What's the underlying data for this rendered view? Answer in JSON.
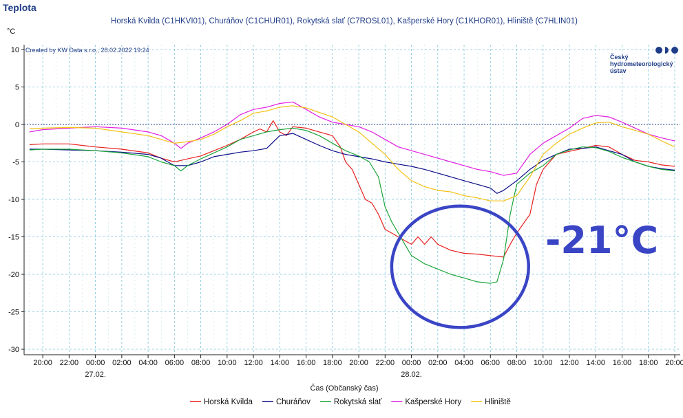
{
  "chart_data": {
    "type": "line",
    "title": "Teplota",
    "subtitle": "Horská Kvilda (C1HKVI01), Churáňov (C1CHUR01), Rokytská slať (C7ROSL01), Kašperské Hory (C1KHOR01), Hliniště (C7HLIN01)",
    "credit": "Created by KW Data s.r.o., 28.02.2022 19:24",
    "logo_lines": [
      "Český",
      "hydrometeorologický",
      "ústav"
    ],
    "ylabel": "°C",
    "xlabel": "Čas (Občanský čas)",
    "ylim": [
      -30,
      10
    ],
    "y_ticks": [
      10,
      5,
      0,
      -5,
      -10,
      -15,
      -20,
      -25,
      -30
    ],
    "x_range": [
      -5,
      44
    ],
    "x_ticks": [
      {
        "x": -4,
        "label": "20:00"
      },
      {
        "x": -2,
        "label": "22:00"
      },
      {
        "x": 0,
        "label": "00:00"
      },
      {
        "x": 2,
        "label": "02:00"
      },
      {
        "x": 4,
        "label": "04:00"
      },
      {
        "x": 6,
        "label": "06:00"
      },
      {
        "x": 8,
        "label": "08:00"
      },
      {
        "x": 10,
        "label": "10:00"
      },
      {
        "x": 12,
        "label": "12:00"
      },
      {
        "x": 14,
        "label": "14:00"
      },
      {
        "x": 16,
        "label": "16:00"
      },
      {
        "x": 18,
        "label": "18:00"
      },
      {
        "x": 20,
        "label": "20:00"
      },
      {
        "x": 22,
        "label": "22:00"
      },
      {
        "x": 24,
        "label": "00:00"
      },
      {
        "x": 26,
        "label": "02:00"
      },
      {
        "x": 28,
        "label": "04:00"
      },
      {
        "x": 30,
        "label": "06:00"
      },
      {
        "x": 32,
        "label": "08:00"
      },
      {
        "x": 34,
        "label": "10:00"
      },
      {
        "x": 36,
        "label": "12:00"
      },
      {
        "x": 38,
        "label": "14:00"
      },
      {
        "x": 40,
        "label": "16:00"
      },
      {
        "x": 42,
        "label": "18:00"
      },
      {
        "x": 44,
        "label": "20:00"
      }
    ],
    "date_labels": [
      {
        "x": 0,
        "label": "27.02."
      },
      {
        "x": 24,
        "label": "28.02."
      }
    ],
    "grid": true,
    "legend_position": "bottom",
    "annotation": {
      "text": "-21°C",
      "color": "#3a45c5",
      "circle_center": [
        27.7,
        -19
      ],
      "circle_radii": [
        5.2,
        8.1
      ]
    },
    "series": [
      {
        "name": "Horská Kvilda",
        "color": "#e8201e",
        "points": [
          [
            -5,
            -2.7
          ],
          [
            -4,
            -2.6
          ],
          [
            -2,
            -2.6
          ],
          [
            0,
            -3
          ],
          [
            2,
            -3.3
          ],
          [
            4,
            -3.8
          ],
          [
            5,
            -4.5
          ],
          [
            6,
            -5
          ],
          [
            7,
            -4.6
          ],
          [
            8,
            -4.2
          ],
          [
            9,
            -3.5
          ],
          [
            10,
            -2.8
          ],
          [
            11,
            -2
          ],
          [
            12,
            -1
          ],
          [
            12.5,
            -0.6
          ],
          [
            13,
            -1
          ],
          [
            13.5,
            0.5
          ],
          [
            14,
            -1
          ],
          [
            14.5,
            -1.5
          ],
          [
            15,
            -0.3
          ],
          [
            16,
            -0.5
          ],
          [
            17,
            -1
          ],
          [
            18,
            -1.5
          ],
          [
            18.6,
            -3
          ],
          [
            19,
            -5
          ],
          [
            19.5,
            -6
          ],
          [
            20,
            -8
          ],
          [
            20.5,
            -10
          ],
          [
            21,
            -10.5
          ],
          [
            21.5,
            -12
          ],
          [
            22,
            -14
          ],
          [
            22.5,
            -14.5
          ],
          [
            23,
            -15
          ],
          [
            23.5,
            -15.5
          ],
          [
            24,
            -16
          ],
          [
            24.5,
            -15
          ],
          [
            25,
            -16
          ],
          [
            25.5,
            -15
          ],
          [
            26,
            -16
          ],
          [
            27,
            -16.8
          ],
          [
            28,
            -17.2
          ],
          [
            29,
            -17.3
          ],
          [
            30,
            -17.5
          ],
          [
            31,
            -17.7
          ],
          [
            31.5,
            -16
          ],
          [
            32,
            -14.5
          ],
          [
            33,
            -12
          ],
          [
            33.5,
            -8
          ],
          [
            34,
            -6
          ],
          [
            35,
            -4
          ],
          [
            36,
            -3.6
          ],
          [
            37,
            -3.2
          ],
          [
            38,
            -2.8
          ],
          [
            39,
            -3
          ],
          [
            40,
            -4
          ],
          [
            41,
            -4.8
          ],
          [
            42,
            -5
          ],
          [
            43,
            -5.4
          ],
          [
            44,
            -5.6
          ]
        ]
      },
      {
        "name": "Churáňov",
        "color": "#0b0b8a",
        "points": [
          [
            -5,
            -3.3
          ],
          [
            -4,
            -3.3
          ],
          [
            -2,
            -3.4
          ],
          [
            0,
            -3.5
          ],
          [
            2,
            -3.7
          ],
          [
            4,
            -4
          ],
          [
            5,
            -4.5
          ],
          [
            6,
            -5.5
          ],
          [
            7,
            -5.5
          ],
          [
            8,
            -5
          ],
          [
            9,
            -4.3
          ],
          [
            10,
            -4
          ],
          [
            11,
            -3.7
          ],
          [
            12,
            -3.5
          ],
          [
            13,
            -3.2
          ],
          [
            14,
            -1.5
          ],
          [
            15,
            -1.2
          ],
          [
            16,
            -2
          ],
          [
            17,
            -2.8
          ],
          [
            18,
            -3.5
          ],
          [
            19,
            -4
          ],
          [
            20,
            -4.3
          ],
          [
            21,
            -4.6
          ],
          [
            22,
            -5
          ],
          [
            23,
            -5.3
          ],
          [
            24,
            -5.6
          ],
          [
            25,
            -6
          ],
          [
            26,
            -6.5
          ],
          [
            27,
            -7
          ],
          [
            28,
            -7.5
          ],
          [
            29,
            -8
          ],
          [
            30,
            -8.5
          ],
          [
            30.5,
            -9.2
          ],
          [
            31,
            -8.8
          ],
          [
            32,
            -7.5
          ],
          [
            33,
            -6
          ],
          [
            34,
            -4.8
          ],
          [
            35,
            -4
          ],
          [
            36,
            -3.3
          ],
          [
            37,
            -3.2
          ],
          [
            38,
            -3
          ],
          [
            39,
            -3.5
          ],
          [
            40,
            -4
          ],
          [
            41,
            -5
          ],
          [
            42,
            -5.6
          ],
          [
            43,
            -5.9
          ],
          [
            44,
            -6.1
          ]
        ]
      },
      {
        "name": "Rokytská slať",
        "color": "#1aa338",
        "points": [
          [
            -5,
            -3.4
          ],
          [
            -4,
            -3.3
          ],
          [
            -2,
            -3.3
          ],
          [
            0,
            -3.5
          ],
          [
            2,
            -3.8
          ],
          [
            4,
            -4.3
          ],
          [
            5,
            -5
          ],
          [
            6,
            -5.5
          ],
          [
            6.5,
            -6.2
          ],
          [
            7,
            -5.5
          ],
          [
            8,
            -4.6
          ],
          [
            9,
            -3.8
          ],
          [
            10,
            -3
          ],
          [
            11,
            -2
          ],
          [
            12,
            -1.5
          ],
          [
            13,
            -1
          ],
          [
            14,
            -0.7
          ],
          [
            15,
            -0.5
          ],
          [
            16,
            -0.8
          ],
          [
            17,
            -1.5
          ],
          [
            18,
            -2.5
          ],
          [
            19,
            -3.5
          ],
          [
            20,
            -4.2
          ],
          [
            20.8,
            -5
          ],
          [
            21.5,
            -7
          ],
          [
            22,
            -11
          ],
          [
            22.5,
            -13
          ],
          [
            23,
            -14.5
          ],
          [
            23.5,
            -16
          ],
          [
            24,
            -17.5
          ],
          [
            25,
            -18.6
          ],
          [
            26,
            -19.3
          ],
          [
            27,
            -20
          ],
          [
            28,
            -20.5
          ],
          [
            29,
            -21
          ],
          [
            30,
            -21.2
          ],
          [
            30.5,
            -21
          ],
          [
            31,
            -18
          ],
          [
            31.5,
            -12
          ],
          [
            32,
            -8
          ],
          [
            33,
            -6.5
          ],
          [
            34,
            -5.5
          ],
          [
            35,
            -4
          ],
          [
            36,
            -3.4
          ],
          [
            37,
            -3
          ],
          [
            38,
            -3.1
          ],
          [
            39,
            -3.6
          ],
          [
            40,
            -4.4
          ],
          [
            41,
            -5
          ],
          [
            42,
            -5.6
          ],
          [
            43,
            -6
          ],
          [
            44,
            -6.2
          ]
        ]
      },
      {
        "name": "Kašperské Hory",
        "color": "#e21ee2",
        "points": [
          [
            -5,
            -1
          ],
          [
            -4,
            -0.7
          ],
          [
            -2,
            -0.5
          ],
          [
            0,
            -0.3
          ],
          [
            2,
            -0.5
          ],
          [
            4,
            -1
          ],
          [
            5,
            -1.5
          ],
          [
            6,
            -2.5
          ],
          [
            6.5,
            -3.2
          ],
          [
            7,
            -2.5
          ],
          [
            8,
            -1.8
          ],
          [
            9,
            -1
          ],
          [
            10,
            0
          ],
          [
            11,
            1.3
          ],
          [
            12,
            2
          ],
          [
            13,
            2.3
          ],
          [
            14,
            2.8
          ],
          [
            15,
            3
          ],
          [
            16,
            2
          ],
          [
            17,
            1
          ],
          [
            18,
            0.3
          ],
          [
            19,
            0
          ],
          [
            20,
            -0.3
          ],
          [
            21,
            -1
          ],
          [
            22,
            -2
          ],
          [
            23,
            -3
          ],
          [
            24,
            -3.5
          ],
          [
            25,
            -4
          ],
          [
            26,
            -4.5
          ],
          [
            27,
            -5
          ],
          [
            28,
            -5.5
          ],
          [
            29,
            -6
          ],
          [
            30,
            -6.3
          ],
          [
            31,
            -6.8
          ],
          [
            32,
            -6.5
          ],
          [
            33,
            -4
          ],
          [
            34,
            -2.5
          ],
          [
            35,
            -1.5
          ],
          [
            36,
            -0.5
          ],
          [
            37,
            0.8
          ],
          [
            38,
            1.2
          ],
          [
            39,
            1
          ],
          [
            40,
            0.3
          ],
          [
            41,
            -0.5
          ],
          [
            42,
            -1.3
          ],
          [
            43,
            -1.8
          ],
          [
            44,
            -2.2
          ]
        ]
      },
      {
        "name": "Hliniště",
        "color": "#f2c012",
        "points": [
          [
            -5,
            -0.6
          ],
          [
            -4,
            -0.5
          ],
          [
            -2,
            -0.4
          ],
          [
            0,
            -0.5
          ],
          [
            2,
            -1
          ],
          [
            4,
            -1.5
          ],
          [
            5,
            -2
          ],
          [
            6,
            -2.5
          ],
          [
            7,
            -2.3
          ],
          [
            8,
            -2
          ],
          [
            9,
            -1.3
          ],
          [
            10,
            -0.3
          ],
          [
            11,
            0.5
          ],
          [
            12,
            1.5
          ],
          [
            13,
            1.8
          ],
          [
            14,
            2.3
          ],
          [
            15,
            2.5
          ],
          [
            16,
            2.2
          ],
          [
            17,
            1.6
          ],
          [
            18,
            1
          ],
          [
            19,
            0
          ],
          [
            20,
            -1
          ],
          [
            21,
            -2.5
          ],
          [
            22,
            -4
          ],
          [
            23,
            -6
          ],
          [
            24,
            -7.5
          ],
          [
            25,
            -8.3
          ],
          [
            26,
            -8.8
          ],
          [
            27,
            -9
          ],
          [
            28,
            -9.5
          ],
          [
            29,
            -9.8
          ],
          [
            30,
            -10.2
          ],
          [
            31,
            -10.2
          ],
          [
            32,
            -9.5
          ],
          [
            33,
            -7
          ],
          [
            34,
            -4
          ],
          [
            35,
            -2.5
          ],
          [
            36,
            -1.3
          ],
          [
            37,
            -0.5
          ],
          [
            38,
            0.2
          ],
          [
            39,
            0.3
          ],
          [
            40,
            -0.3
          ],
          [
            41,
            -0.8
          ],
          [
            42,
            -1.3
          ],
          [
            43,
            -2.2
          ],
          [
            44,
            -3
          ]
        ]
      }
    ]
  }
}
